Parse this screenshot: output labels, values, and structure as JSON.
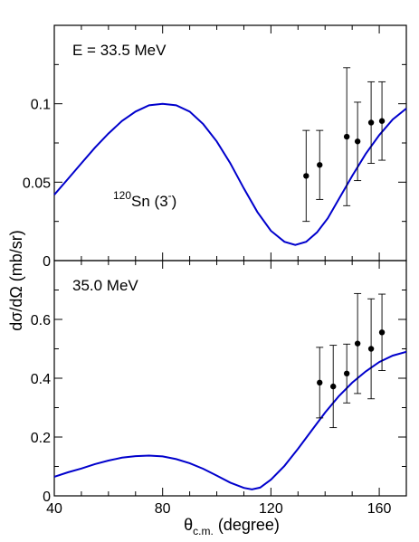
{
  "chart_data": [
    {
      "type": "line",
      "panel": "upper",
      "annotation": "E = 33.5 MeV",
      "nucleus_label": {
        "mass_number": "120",
        "element": "Sn",
        "open": " (3",
        "parity": "-",
        "close": ")"
      },
      "xlim": [
        40,
        170
      ],
      "ylim": [
        0,
        0.15
      ],
      "yticks": [
        0,
        0.05,
        0.1
      ],
      "ytick_labels": [
        "0",
        "0.05",
        "0.1"
      ],
      "series": [
        {
          "kind": "curve",
          "color": "#0000cc",
          "x": [
            40,
            45,
            50,
            55,
            60,
            65,
            70,
            75,
            80,
            85,
            90,
            95,
            100,
            105,
            110,
            115,
            120,
            125,
            129,
            133,
            137,
            141,
            145,
            150,
            155,
            160,
            165,
            170
          ],
          "y": [
            0.042,
            0.052,
            0.062,
            0.072,
            0.081,
            0.089,
            0.095,
            0.099,
            0.1,
            0.099,
            0.095,
            0.087,
            0.076,
            0.062,
            0.046,
            0.031,
            0.019,
            0.012,
            0.01,
            0.012,
            0.018,
            0.027,
            0.039,
            0.054,
            0.068,
            0.08,
            0.09,
            0.097
          ]
        },
        {
          "kind": "data",
          "color": "#000000",
          "x": [
            133,
            138,
            148,
            152,
            157,
            161
          ],
          "y": [
            0.054,
            0.061,
            0.079,
            0.076,
            0.088,
            0.089
          ],
          "err": [
            0.029,
            0.022,
            0.044,
            0.025,
            0.026,
            0.025
          ]
        }
      ]
    },
    {
      "type": "line",
      "panel": "lower",
      "annotation": "35.0 MeV",
      "xlim": [
        40,
        170
      ],
      "ylim": [
        0,
        0.8
      ],
      "yticks": [
        0,
        0.2,
        0.4,
        0.6
      ],
      "ytick_labels": [
        "0",
        "0.2",
        "0.4",
        "0.6"
      ],
      "xticks": [
        40,
        80,
        120,
        160
      ],
      "xtick_labels": [
        "40",
        "80",
        "120",
        "160"
      ],
      "series": [
        {
          "kind": "curve",
          "color": "#0000cc",
          "x": [
            40,
            45,
            50,
            55,
            60,
            65,
            70,
            75,
            80,
            85,
            90,
            95,
            100,
            105,
            110,
            113,
            116,
            120,
            125,
            130,
            135,
            140,
            145,
            150,
            155,
            160,
            165,
            170
          ],
          "y": [
            0.065,
            0.08,
            0.093,
            0.108,
            0.12,
            0.13,
            0.135,
            0.137,
            0.134,
            0.125,
            0.111,
            0.092,
            0.069,
            0.045,
            0.027,
            0.022,
            0.028,
            0.055,
            0.102,
            0.16,
            0.222,
            0.283,
            0.338,
            0.385,
            0.423,
            0.455,
            0.477,
            0.49
          ]
        },
        {
          "kind": "data",
          "color": "#000000",
          "x": [
            138,
            143,
            148,
            152,
            157,
            161
          ],
          "y": [
            0.385,
            0.372,
            0.416,
            0.518,
            0.5,
            0.556
          ],
          "err": [
            0.12,
            0.14,
            0.1,
            0.17,
            0.17,
            0.13
          ]
        }
      ]
    }
  ],
  "axes": {
    "ylabel": "dσ/dΩ (mb/sr)",
    "xlabel_main": "θ",
    "xlabel_sub": "c.m.",
    "xlabel_rest": " (degree)"
  }
}
